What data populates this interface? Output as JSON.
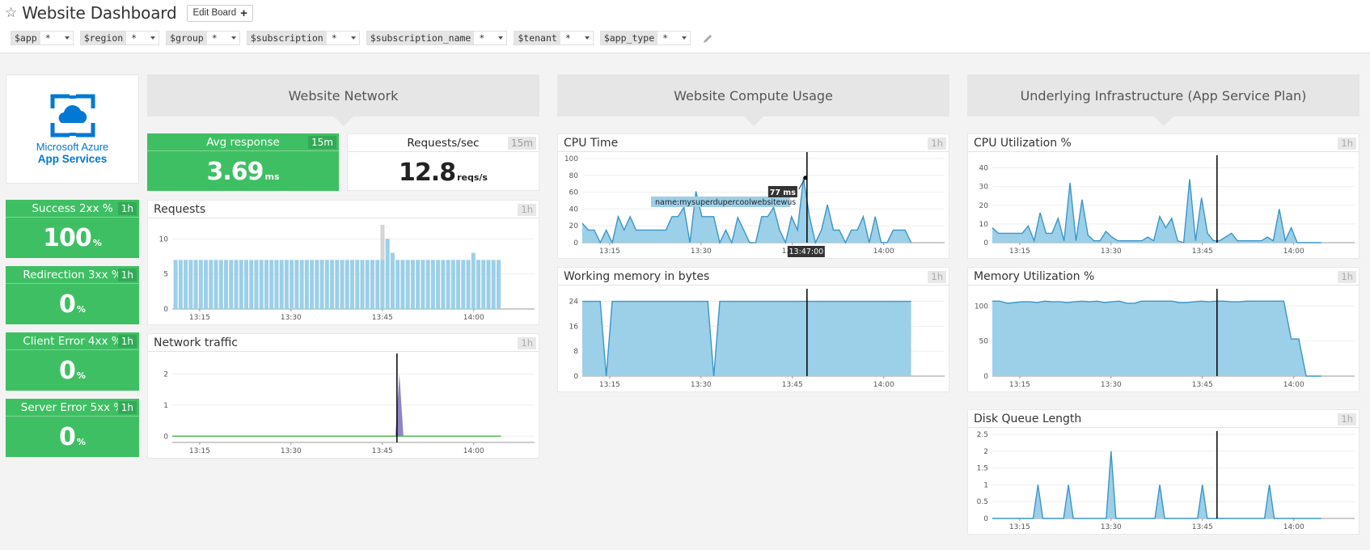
{
  "header": {
    "title": "Website Dashboard",
    "favorite_icon": "star-outline-icon",
    "edit_button_label": "Edit Board",
    "edit_button_icon": "plus-icon"
  },
  "template_variables": [
    {
      "name": "$app",
      "value": "*"
    },
    {
      "name": "$region",
      "value": "*"
    },
    {
      "name": "$group",
      "value": "*"
    },
    {
      "name": "$subscription",
      "value": "*"
    },
    {
      "name": "$subscription_name",
      "value": "*"
    },
    {
      "name": "$tenant",
      "value": "*"
    },
    {
      "name": "$app_type",
      "value": "*"
    }
  ],
  "logo": {
    "line1": "Microsoft Azure",
    "line2": "App Services"
  },
  "status_tiles": [
    {
      "label": "Success 2xx %",
      "badge": "1h",
      "value": "100",
      "unit": "%"
    },
    {
      "label": "Redirection 3xx %",
      "badge": "1h",
      "value": "0",
      "unit": "%"
    },
    {
      "label": "Client Error 4xx %",
      "badge": "1h",
      "value": "0",
      "unit": "%"
    },
    {
      "label": "Server Error 5xx %",
      "badge": "1h",
      "value": "0",
      "unit": "%"
    }
  ],
  "sections": {
    "network": "Website Network",
    "compute": "Website Compute Usage",
    "infra": "Underlying Infrastructure (App Service Plan)"
  },
  "network": {
    "avg_response": {
      "label": "Avg response",
      "badge": "15m",
      "value": "3.69",
      "unit": "ms"
    },
    "requests_sec": {
      "label": "Requests/sec",
      "badge": "15m",
      "value": "12.8",
      "unit": "reqs/s"
    },
    "requests": {
      "title": "Requests",
      "badge": "1h"
    },
    "traffic": {
      "title": "Network traffic",
      "badge": "1h"
    }
  },
  "compute": {
    "cpu_time": {
      "title": "CPU Time",
      "badge": "1h",
      "tooltip_value": "77 ms",
      "tooltip_series": "name:mysuperdupercoolwebsitewus",
      "tooltip_time": "13:47:00"
    },
    "memory": {
      "title": "Working memory in bytes",
      "badge": "1h"
    }
  },
  "infra": {
    "cpu_util": {
      "title": "CPU Utilization %",
      "badge": "1h"
    },
    "mem_util": {
      "title": "Memory Utilization %",
      "badge": "1h"
    },
    "disk_queue": {
      "title": "Disk Queue Length",
      "badge": "1h"
    }
  },
  "colors": {
    "green": "#3ebf63",
    "series_fill": "#9ccfe8",
    "series_line": "#3a96c9",
    "purple": "#7b6fbf",
    "green_line": "#5cb85c"
  },
  "chart_data": [
    {
      "id": "requests",
      "type": "bar",
      "title": "Requests",
      "x_ticks": [
        "13:15",
        "13:30",
        "13:45",
        "14:00"
      ],
      "y_ticks": [
        0,
        5,
        10
      ],
      "ylim": [
        0,
        12
      ],
      "values": [
        7,
        7,
        7,
        7,
        7,
        7,
        7,
        7,
        7,
        7,
        7,
        7,
        7,
        7,
        7,
        7,
        7,
        7,
        7,
        7,
        7,
        7,
        7,
        7,
        7,
        7,
        7,
        7,
        7,
        7,
        7,
        7,
        7,
        7,
        7,
        7,
        7,
        7,
        7,
        7,
        7,
        12,
        10,
        8,
        7,
        7,
        7,
        7,
        7,
        7,
        7,
        7,
        7,
        7,
        7,
        7,
        7,
        7,
        7,
        8,
        7,
        7,
        7,
        7,
        7
      ],
      "highlight_index": 41
    },
    {
      "id": "network_traffic",
      "type": "area",
      "title": "Network traffic",
      "x_ticks": [
        "13:15",
        "13:30",
        "13:45",
        "14:00"
      ],
      "y_ticks": [
        0,
        1,
        2
      ],
      "ylim": [
        -0.2,
        2.5
      ],
      "series": [
        {
          "name": "in",
          "color": "#7b6fbf",
          "peak": {
            "time": "13:47",
            "value": 2
          }
        },
        {
          "name": "out",
          "color": "#5cb85c",
          "values_constant": 0
        }
      ]
    },
    {
      "id": "cpu_time",
      "type": "area",
      "title": "CPU Time",
      "x_ticks": [
        "13:15",
        "13:30",
        "13:45",
        "14:00"
      ],
      "y_ticks": [
        0,
        20,
        40,
        60,
        80,
        100
      ],
      "ylim": [
        0,
        100
      ],
      "values": [
        23,
        15,
        15,
        0,
        15,
        0,
        31,
        15,
        31,
        15,
        15,
        15,
        15,
        15,
        15,
        31,
        31,
        42,
        0,
        61,
        31,
        31,
        31,
        0,
        15,
        0,
        30,
        15,
        0,
        0,
        31,
        31,
        42,
        15,
        0,
        31,
        15,
        77,
        31,
        0,
        15,
        45,
        15,
        15,
        0,
        15,
        15,
        31,
        0,
        31,
        0,
        0,
        15,
        15,
        15,
        0
      ],
      "tooltip": {
        "time": "13:47:00",
        "value": "77 ms",
        "series": "name:mysuperdupercoolwebsitewus"
      }
    },
    {
      "id": "working_memory",
      "type": "area",
      "title": "Working memory in bytes",
      "x_ticks": [
        "13:15",
        "13:30",
        "13:45",
        "14:00"
      ],
      "y_ticks": [
        0,
        8,
        16,
        24
      ],
      "ylim": [
        0,
        27
      ],
      "values": [
        24,
        24,
        24,
        24,
        0,
        24,
        24,
        24,
        24,
        24,
        24,
        24,
        24,
        24,
        24,
        24,
        24,
        24,
        24,
        24,
        24,
        24,
        0,
        24,
        24,
        24,
        24,
        24,
        24,
        24,
        24,
        24,
        24,
        24,
        24,
        24,
        24,
        24,
        24,
        24,
        24,
        24,
        24,
        24,
        24,
        24,
        24,
        24,
        24,
        24,
        24,
        24,
        24,
        24,
        24,
        24
      ]
    },
    {
      "id": "cpu_utilization",
      "type": "area",
      "title": "CPU Utilization %",
      "x_ticks": [
        "13:15",
        "13:30",
        "13:45",
        "14:00"
      ],
      "y_ticks": [
        0,
        10,
        20,
        30,
        40
      ],
      "ylim": [
        0,
        45
      ],
      "values": [
        8,
        5,
        5,
        5,
        5,
        5,
        9,
        1,
        16,
        5,
        5,
        13,
        1,
        32,
        1,
        23,
        4,
        1,
        1,
        6,
        3,
        1,
        1,
        1,
        1,
        1,
        3,
        1,
        14,
        8,
        13,
        1,
        0,
        34,
        1,
        24,
        5,
        1,
        1,
        3,
        5,
        1,
        1,
        1,
        1,
        1,
        3,
        1,
        18,
        1,
        8,
        0,
        0,
        0,
        0,
        0
      ],
      "cursor": "13:47"
    },
    {
      "id": "memory_utilization",
      "type": "area",
      "title": "Memory Utilization %",
      "x_ticks": [
        "13:15",
        "13:30",
        "13:45",
        "14:00"
      ],
      "y_ticks": [
        0,
        50,
        100
      ],
      "ylim": [
        0,
        120
      ],
      "values": [
        107,
        107,
        104,
        105,
        106,
        106,
        105,
        107,
        106,
        106,
        105,
        106,
        107,
        106,
        107,
        105,
        106,
        107,
        104,
        104,
        107,
        107,
        107,
        107,
        107,
        105,
        105,
        106,
        107,
        106,
        107,
        107,
        106,
        106,
        107,
        107,
        107,
        107,
        107,
        107,
        53,
        53,
        0,
        0,
        0
      ]
    },
    {
      "id": "disk_queue_length",
      "type": "area",
      "title": "Disk Queue Length",
      "x_ticks": [
        "13:15",
        "13:30",
        "13:45",
        "14:00"
      ],
      "y_ticks": [
        0,
        0.5,
        1,
        1.5,
        2,
        2.5
      ],
      "ylim": [
        0,
        2.5
      ],
      "peaks": [
        {
          "time": "13:18",
          "value": 1
        },
        {
          "time": "13:23",
          "value": 1
        },
        {
          "time": "13:30",
          "value": 2
        },
        {
          "time": "13:38",
          "value": 1
        },
        {
          "time": "13:45",
          "value": 1
        },
        {
          "time": "13:56",
          "value": 1
        }
      ]
    }
  ]
}
